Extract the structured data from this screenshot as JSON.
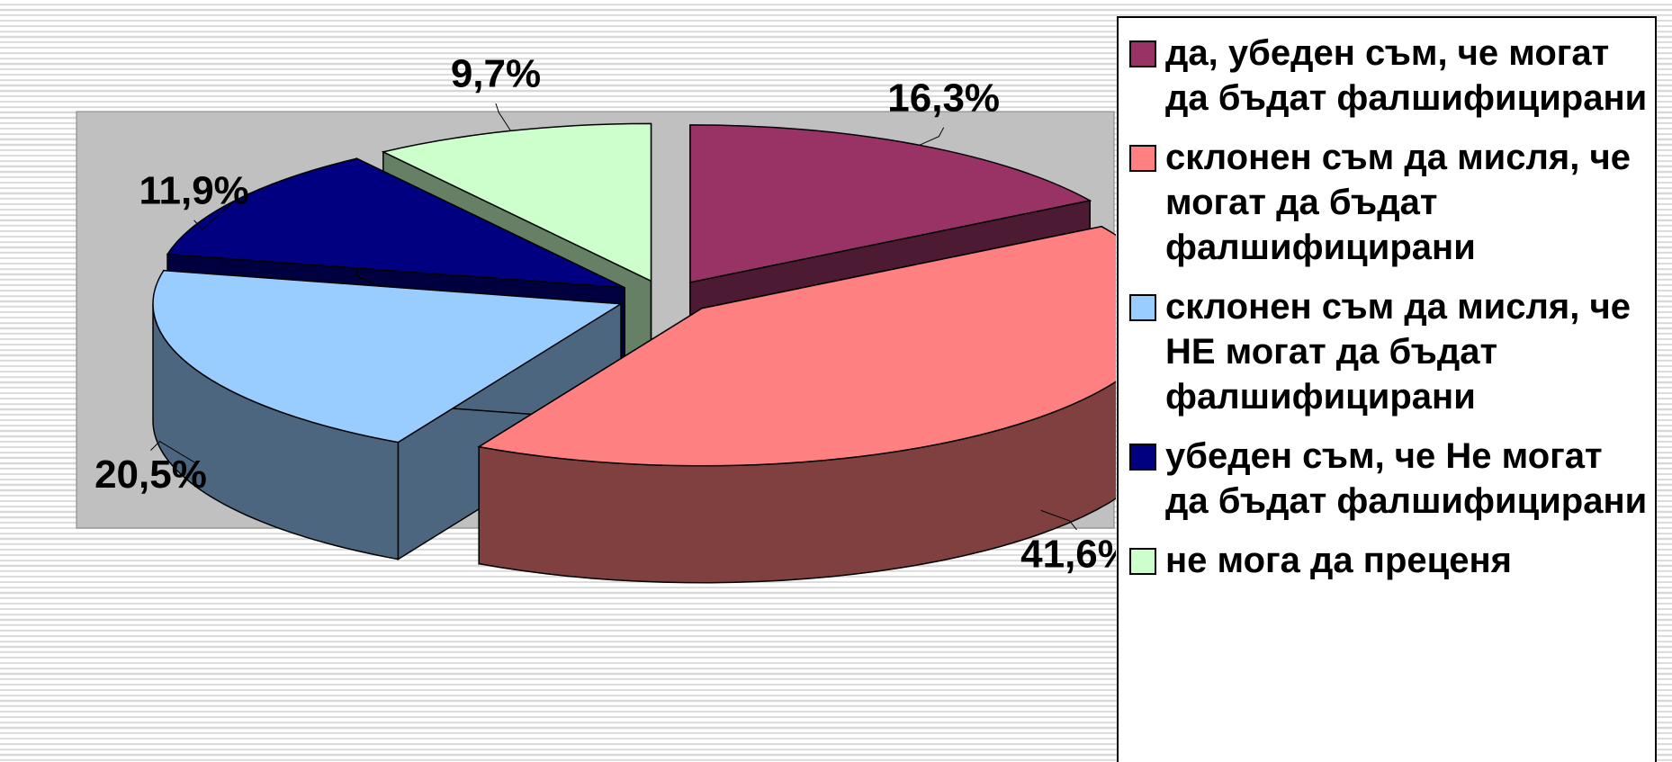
{
  "chart_data": {
    "type": "pie",
    "categories": [
      "да, убеден съм, че могат да бъдат фалшифицирани",
      "склонен съм да мисля, че могат да бъдат фалшифицирани",
      "склонен съм да мисля, че НЕ могат да бъдат фалшифицирани",
      "убеден съм, че Не могат да бъдат фалшифицирани",
      "не мога да преценя"
    ],
    "values": [
      16.3,
      41.6,
      20.5,
      11.9,
      9.7
    ],
    "value_labels": [
      "16,3%",
      "41,6%",
      "20,5%",
      "11,9%",
      "9,7%"
    ],
    "colors": [
      "#993366",
      "#ff8080",
      "#99ccff",
      "#000080",
      "#ccffcc"
    ],
    "legend": "right"
  }
}
